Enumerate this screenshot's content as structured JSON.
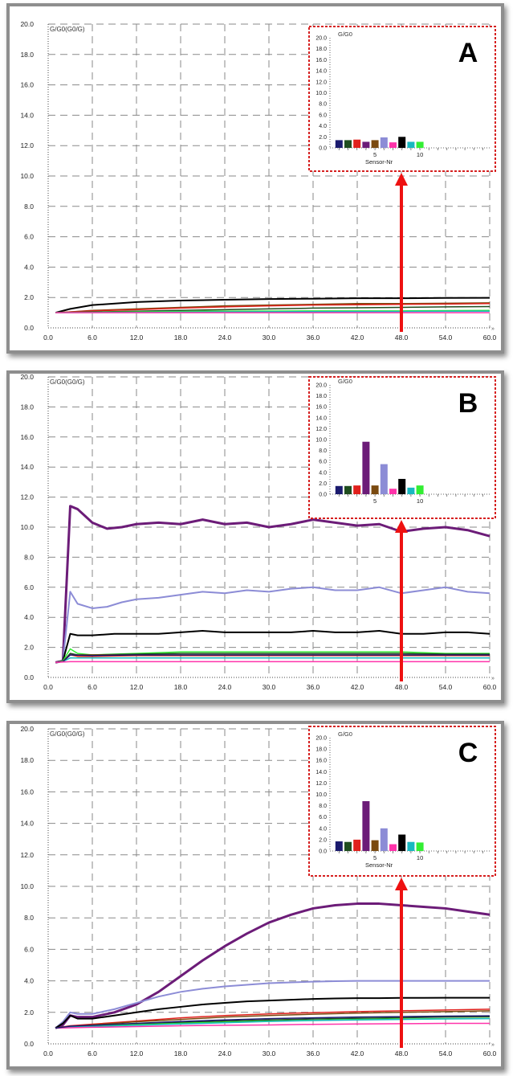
{
  "panels": [
    {
      "label": "A",
      "ylabel": "G/G0(G0/G)"
    },
    {
      "label": "B",
      "ylabel": "G/G0(G0/G)"
    },
    {
      "label": "C",
      "ylabel": "G/G0(G0/G)"
    }
  ],
  "colors": {
    "sensors": [
      "#1b1b6e",
      "#1f4d1f",
      "#e0201c",
      "#6c1c78",
      "#7a4a10",
      "#8c8cd6",
      "#ff33aa",
      "#000000",
      "#18b8c0",
      "#33ee33"
    ],
    "arrow": "#ee1111",
    "inset_border": "#d62020"
  },
  "chart_data": [
    {
      "type": "line",
      "panel": "A",
      "ylabel": "G/G0(G0/G)",
      "xlim": [
        0,
        60
      ],
      "ylim": [
        0,
        20
      ],
      "x_ticks": [
        "0.0",
        "6.0",
        "12.0",
        "18.0",
        "24.0",
        "30.0",
        "36.0",
        "42.0",
        "48.0",
        "54.0",
        "60.0"
      ],
      "y_ticks": [
        "0.0",
        "2.0",
        "4.0",
        "6.0",
        "8.0",
        "10.0",
        "12.0",
        "14.0",
        "16.0",
        "18.0",
        "20.0"
      ],
      "grid": true,
      "series": [
        {
          "color": "#000000",
          "x": [
            1,
            3,
            6,
            12,
            18,
            24,
            30,
            36,
            42,
            48,
            54,
            60
          ],
          "y": [
            1,
            1.25,
            1.5,
            1.7,
            1.8,
            1.85,
            1.9,
            1.92,
            1.95,
            1.95,
            1.97,
            1.98
          ]
        },
        {
          "color": "#7a4a10",
          "x": [
            1,
            3,
            6,
            12,
            18,
            24,
            30,
            36,
            42,
            48,
            54,
            60
          ],
          "y": [
            1,
            1.05,
            1.15,
            1.25,
            1.35,
            1.45,
            1.5,
            1.55,
            1.6,
            1.6,
            1.62,
            1.65
          ]
        },
        {
          "color": "#e0201c",
          "x": [
            1,
            3,
            6,
            12,
            18,
            24,
            30,
            36,
            42,
            48,
            54,
            60
          ],
          "y": [
            1,
            1.05,
            1.12,
            1.2,
            1.3,
            1.38,
            1.45,
            1.5,
            1.52,
            1.55,
            1.57,
            1.6
          ]
        },
        {
          "color": "#1f4d1f",
          "x": [
            1,
            6,
            12,
            18,
            24,
            30,
            36,
            42,
            48,
            54,
            60
          ],
          "y": [
            1,
            1.05,
            1.1,
            1.15,
            1.2,
            1.25,
            1.3,
            1.32,
            1.35,
            1.38,
            1.4
          ]
        },
        {
          "color": "#33ee33",
          "x": [
            1,
            12,
            24,
            36,
            48,
            60
          ],
          "y": [
            1,
            1.05,
            1.1,
            1.12,
            1.12,
            1.15
          ]
        },
        {
          "color": "#18b8c0",
          "x": [
            1,
            12,
            24,
            36,
            48,
            60
          ],
          "y": [
            1,
            1.02,
            1.05,
            1.07,
            1.08,
            1.1
          ]
        },
        {
          "color": "#ff33aa",
          "x": [
            1,
            30,
            60
          ],
          "y": [
            1,
            1.0,
            1.0
          ]
        }
      ],
      "inset": {
        "type": "bar",
        "ylabel": "G/G0",
        "xlabel": "Sensor-Nr",
        "y_ticks": [
          "0.0",
          "2.0",
          "4.0",
          "6.0",
          "8.0",
          "10.0",
          "12.0",
          "14.0",
          "16.0",
          "18.0",
          "20.0"
        ],
        "x_ticks": [
          "5",
          "10"
        ],
        "ylim": [
          0,
          20
        ],
        "categories": [
          1,
          2,
          3,
          4,
          5,
          6,
          7,
          8,
          9,
          10
        ],
        "values": [
          1.4,
          1.4,
          1.5,
          1.1,
          1.4,
          1.9,
          1.0,
          2.0,
          1.1,
          1.1
        ]
      }
    },
    {
      "type": "line",
      "panel": "B",
      "ylabel": "G/G0(G0/G)",
      "xlim": [
        0,
        60
      ],
      "ylim": [
        0,
        20
      ],
      "x_ticks": [
        "0.0",
        "6.0",
        "12.0",
        "18.0",
        "24.0",
        "30.0",
        "36.0",
        "42.0",
        "48.0",
        "54.0",
        "60.0"
      ],
      "y_ticks": [
        "0.0",
        "2.0",
        "4.0",
        "6.0",
        "8.0",
        "10.0",
        "12.0",
        "14.0",
        "16.0",
        "18.0",
        "20.0"
      ],
      "grid": true,
      "series": [
        {
          "color": "#6c1c78",
          "x": [
            1,
            2,
            3,
            4,
            6,
            8,
            10,
            12,
            15,
            18,
            21,
            24,
            27,
            30,
            33,
            36,
            39,
            42,
            45,
            48,
            51,
            54,
            57,
            60
          ],
          "y": [
            1,
            1.1,
            11.4,
            11.2,
            10.3,
            9.9,
            10.0,
            10.2,
            10.3,
            10.2,
            10.5,
            10.2,
            10.3,
            10.0,
            10.2,
            10.5,
            10.3,
            10.1,
            10.2,
            9.7,
            9.9,
            10.0,
            9.8,
            9.4
          ]
        },
        {
          "color": "#8c8cd6",
          "x": [
            1,
            2,
            3,
            4,
            6,
            8,
            10,
            12,
            15,
            18,
            21,
            24,
            27,
            30,
            33,
            36,
            39,
            42,
            45,
            48,
            51,
            54,
            57,
            60
          ],
          "y": [
            1,
            1.1,
            5.7,
            4.9,
            4.6,
            4.7,
            5.0,
            5.2,
            5.3,
            5.5,
            5.7,
            5.6,
            5.8,
            5.7,
            5.9,
            6.0,
            5.8,
            5.8,
            6.0,
            5.6,
            5.8,
            6.0,
            5.7,
            5.6
          ]
        },
        {
          "color": "#000000",
          "x": [
            1,
            2,
            3,
            4,
            6,
            9,
            12,
            15,
            18,
            21,
            24,
            27,
            30,
            33,
            36,
            39,
            42,
            45,
            48,
            51,
            54,
            57,
            60
          ],
          "y": [
            1,
            1.1,
            2.9,
            2.8,
            2.8,
            2.9,
            2.9,
            2.9,
            3.0,
            3.1,
            3.0,
            3.0,
            3.0,
            3.0,
            3.1,
            3.0,
            3.0,
            3.1,
            2.9,
            2.9,
            3.0,
            3.0,
            2.9
          ]
        },
        {
          "color": "#33ee33",
          "x": [
            1,
            2,
            3,
            4,
            6,
            12,
            18,
            24,
            30,
            36,
            42,
            48,
            54,
            60
          ],
          "y": [
            1,
            1.1,
            1.9,
            1.6,
            1.5,
            1.6,
            1.7,
            1.7,
            1.7,
            1.7,
            1.7,
            1.7,
            1.6,
            1.6
          ]
        },
        {
          "color": "#1f4d1f",
          "x": [
            1,
            2,
            3,
            4,
            6,
            12,
            18,
            24,
            30,
            36,
            42,
            48,
            54,
            60
          ],
          "y": [
            1,
            1.05,
            1.6,
            1.5,
            1.5,
            1.55,
            1.6,
            1.6,
            1.6,
            1.6,
            1.6,
            1.6,
            1.55,
            1.55
          ]
        },
        {
          "color": "#7a4a10",
          "x": [
            1,
            2,
            3,
            4,
            6,
            12,
            18,
            24,
            30,
            36,
            42,
            48,
            54,
            60
          ],
          "y": [
            1,
            1.05,
            1.5,
            1.5,
            1.5,
            1.5,
            1.5,
            1.5,
            1.5,
            1.5,
            1.5,
            1.5,
            1.5,
            1.5
          ]
        },
        {
          "color": "#e0201c",
          "x": [
            1,
            2,
            3,
            4,
            6,
            12,
            18,
            24,
            30,
            36,
            42,
            48,
            54,
            60
          ],
          "y": [
            1,
            1.05,
            1.5,
            1.4,
            1.4,
            1.45,
            1.45,
            1.45,
            1.45,
            1.45,
            1.45,
            1.45,
            1.45,
            1.45
          ]
        },
        {
          "color": "#18b8c0",
          "x": [
            1,
            2,
            3,
            6,
            12,
            24,
            36,
            48,
            60
          ],
          "y": [
            1,
            1.05,
            1.3,
            1.3,
            1.3,
            1.3,
            1.3,
            1.3,
            1.3
          ]
        },
        {
          "color": "#1b1b6e",
          "x": [
            1,
            2,
            3,
            6,
            12,
            24,
            36,
            48,
            60
          ],
          "y": [
            1,
            1.05,
            1.5,
            1.45,
            1.5,
            1.5,
            1.5,
            1.5,
            1.5
          ]
        },
        {
          "color": "#ff33aa",
          "x": [
            1,
            3,
            6,
            12,
            24,
            36,
            48,
            60
          ],
          "y": [
            1,
            1.05,
            1.05,
            1.05,
            1.05,
            1.05,
            1.05,
            1.05
          ]
        }
      ],
      "inset": {
        "type": "bar",
        "ylabel": "G/G0",
        "x_ticks": [
          "5",
          "10"
        ],
        "y_ticks": [
          "0.0",
          "2.0",
          "4.0",
          "6.0",
          "8.0",
          "10.0",
          "12.0",
          "14.0",
          "16.0",
          "18.0",
          "20.0"
        ],
        "ylim": [
          0,
          20
        ],
        "categories": [
          1,
          2,
          3,
          4,
          5,
          6,
          7,
          8,
          9,
          10
        ],
        "values": [
          1.5,
          1.5,
          1.6,
          9.6,
          1.6,
          5.5,
          1.0,
          2.8,
          1.2,
          1.6
        ]
      }
    },
    {
      "type": "line",
      "panel": "C",
      "ylabel": "G/G0(G0/G)",
      "xlim": [
        0,
        60
      ],
      "ylim": [
        0,
        20
      ],
      "x_ticks": [
        "0.0",
        "6.0",
        "12.0",
        "18.0",
        "24.0",
        "30.0",
        "36.0",
        "42.0",
        "48.0",
        "54.0",
        "60.0"
      ],
      "y_ticks": [
        "0.0",
        "2.0",
        "4.0",
        "6.0",
        "8.0",
        "10.0",
        "12.0",
        "14.0",
        "16.0",
        "18.0",
        "20.0"
      ],
      "grid": true,
      "series": [
        {
          "color": "#6c1c78",
          "x": [
            1,
            2,
            3,
            4,
            6,
            9,
            12,
            15,
            18,
            21,
            24,
            27,
            30,
            33,
            36,
            39,
            42,
            45,
            48,
            51,
            54,
            57,
            60
          ],
          "y": [
            1,
            1.2,
            1.8,
            1.7,
            1.7,
            2.0,
            2.5,
            3.3,
            4.3,
            5.3,
            6.2,
            7.0,
            7.7,
            8.2,
            8.6,
            8.8,
            8.9,
            8.9,
            8.8,
            8.7,
            8.6,
            8.4,
            8.2
          ]
        },
        {
          "color": "#8c8cd6",
          "x": [
            1,
            2,
            3,
            4,
            6,
            9,
            12,
            15,
            18,
            21,
            24,
            27,
            30,
            33,
            36,
            39,
            42,
            45,
            48,
            51,
            54,
            57,
            60
          ],
          "y": [
            1,
            1.4,
            2.0,
            1.9,
            1.9,
            2.2,
            2.6,
            3.0,
            3.3,
            3.5,
            3.65,
            3.75,
            3.85,
            3.9,
            3.95,
            3.98,
            4.0,
            4.0,
            4.0,
            4.0,
            4.0,
            4.0,
            4.0
          ]
        },
        {
          "color": "#000000",
          "x": [
            1,
            2,
            3,
            4,
            6,
            9,
            12,
            15,
            18,
            21,
            24,
            27,
            30,
            33,
            36,
            39,
            42,
            45,
            48,
            51,
            54,
            57,
            60
          ],
          "y": [
            1,
            1.3,
            1.8,
            1.6,
            1.6,
            1.8,
            2.0,
            2.2,
            2.35,
            2.5,
            2.6,
            2.7,
            2.75,
            2.8,
            2.85,
            2.88,
            2.9,
            2.9,
            2.92,
            2.92,
            2.93,
            2.93,
            2.93
          ]
        },
        {
          "color": "#e0201c",
          "x": [
            1,
            3,
            6,
            12,
            18,
            24,
            30,
            36,
            42,
            48,
            54,
            60
          ],
          "y": [
            1,
            1.15,
            1.25,
            1.45,
            1.65,
            1.8,
            1.9,
            1.98,
            2.05,
            2.1,
            2.15,
            2.2
          ]
        },
        {
          "color": "#7a4a10",
          "x": [
            1,
            3,
            6,
            12,
            18,
            24,
            30,
            36,
            42,
            48,
            54,
            60
          ],
          "y": [
            1,
            1.1,
            1.2,
            1.4,
            1.55,
            1.7,
            1.8,
            1.88,
            1.95,
            2.0,
            2.05,
            2.1
          ]
        },
        {
          "color": "#1f4d1f",
          "x": [
            1,
            3,
            6,
            12,
            18,
            24,
            30,
            36,
            42,
            48,
            54,
            60
          ],
          "y": [
            1,
            1.1,
            1.15,
            1.25,
            1.35,
            1.45,
            1.52,
            1.58,
            1.62,
            1.66,
            1.7,
            1.72
          ]
        },
        {
          "color": "#33ee33",
          "x": [
            1,
            3,
            6,
            12,
            18,
            24,
            30,
            36,
            42,
            48,
            54,
            60
          ],
          "y": [
            1,
            1.1,
            1.15,
            1.22,
            1.3,
            1.38,
            1.45,
            1.5,
            1.55,
            1.58,
            1.6,
            1.62
          ]
        },
        {
          "color": "#18b8c0",
          "x": [
            1,
            3,
            6,
            12,
            18,
            24,
            30,
            36,
            42,
            48,
            54,
            60
          ],
          "y": [
            1,
            1.05,
            1.1,
            1.18,
            1.26,
            1.34,
            1.42,
            1.48,
            1.52,
            1.55,
            1.58,
            1.6
          ]
        },
        {
          "color": "#ff33aa",
          "x": [
            1,
            6,
            12,
            18,
            24,
            30,
            36,
            42,
            48,
            54,
            60
          ],
          "y": [
            1,
            1.05,
            1.1,
            1.15,
            1.18,
            1.2,
            1.24,
            1.26,
            1.28,
            1.3,
            1.3
          ]
        },
        {
          "color": "#1b1b6e",
          "x": [
            1,
            3,
            6,
            12,
            18,
            24,
            30,
            36,
            42,
            48,
            54,
            60
          ],
          "y": [
            1,
            1.12,
            1.18,
            1.3,
            1.42,
            1.52,
            1.6,
            1.65,
            1.7,
            1.73,
            1.76,
            1.78
          ]
        }
      ],
      "inset": {
        "type": "bar",
        "ylabel": "G/G0",
        "xlabel": "Sensor-Nr",
        "y_ticks": [
          "0.0",
          "2.0",
          "4.0",
          "6.0",
          "8.0",
          "10.0",
          "12.0",
          "14.0",
          "16.0",
          "18.0",
          "20.0"
        ],
        "x_ticks": [
          "5",
          "10"
        ],
        "ylim": [
          0,
          20
        ],
        "categories": [
          1,
          2,
          3,
          4,
          5,
          6,
          7,
          8,
          9,
          10
        ],
        "values": [
          1.7,
          1.6,
          2.0,
          8.8,
          1.9,
          4.0,
          1.2,
          2.9,
          1.6,
          1.5
        ]
      }
    }
  ]
}
